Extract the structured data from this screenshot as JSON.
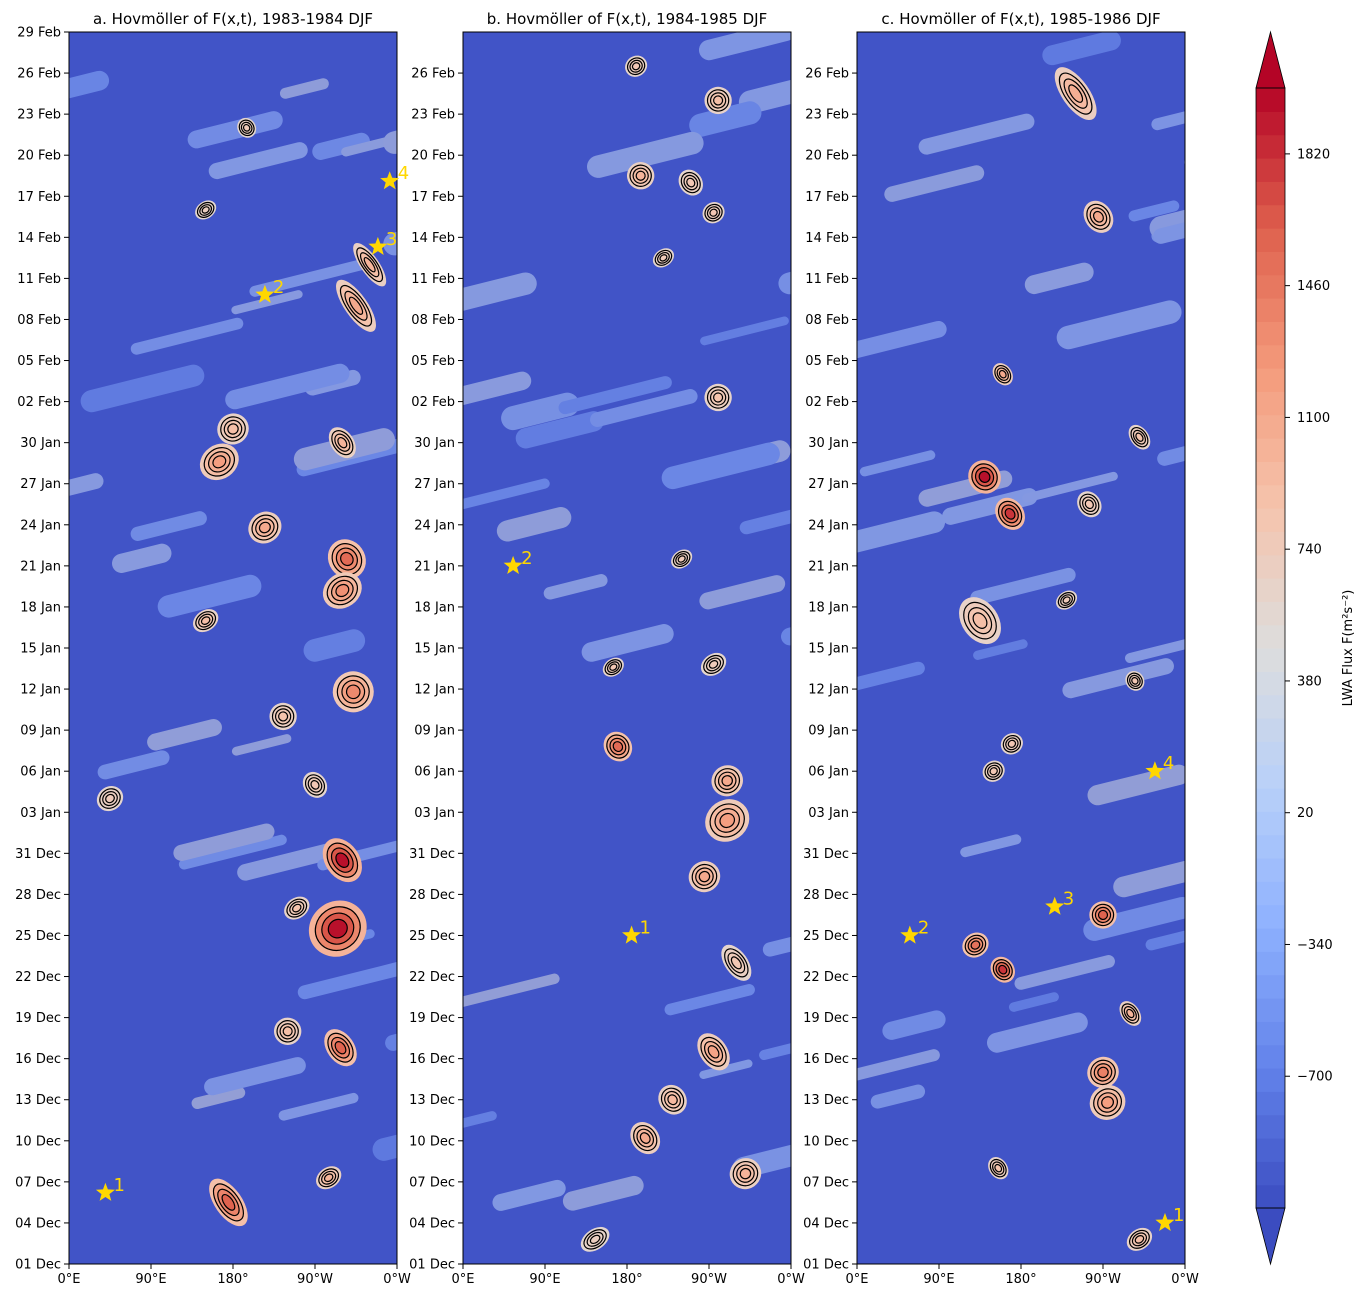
{
  "chart_data": [
    {
      "type": "heatmap",
      "title": "a. Hovmöller of F(x,t), 1983-1984 DJF",
      "xlabel": "",
      "ylabel": "",
      "x_ticks": [
        "0°E",
        "90°E",
        "180°",
        "90°W",
        "0°W"
      ],
      "y_ticks": [
        "01 Dec",
        "04 Dec",
        "07 Dec",
        "10 Dec",
        "13 Dec",
        "16 Dec",
        "19 Dec",
        "22 Dec",
        "25 Dec",
        "28 Dec",
        "31 Dec",
        "03 Jan",
        "06 Jan",
        "09 Jan",
        "12 Jan",
        "15 Jan",
        "18 Jan",
        "21 Jan",
        "24 Jan",
        "27 Jan",
        "30 Jan",
        "02 Feb",
        "05 Feb",
        "08 Feb",
        "11 Feb",
        "14 Feb",
        "17 Feb",
        "20 Feb",
        "23 Feb",
        "26 Feb",
        "29 Feb"
      ],
      "y_range_days": [
        0,
        90
      ],
      "x_range_lon": [
        0,
        360
      ],
      "markers": [
        {
          "label": "1",
          "lon": 40,
          "day": 5.2
        },
        {
          "label": "2",
          "lon": 215,
          "day": 70.8
        },
        {
          "label": "3",
          "lon": 339,
          "day": 74.3
        },
        {
          "label": "4",
          "lon": 352,
          "day": 79.1
        }
      ],
      "blobs": [
        {
          "lon": 295,
          "day": 24.5,
          "amp": 1950,
          "w": 26,
          "h": 1.6
        },
        {
          "lon": 300,
          "day": 29.5,
          "amp": 1950,
          "w": 15,
          "h": 1.4
        },
        {
          "lon": 298,
          "day": 15.8,
          "amp": 1600,
          "w": 12,
          "h": 1.2
        },
        {
          "lon": 175,
          "day": 4.5,
          "amp": 1600,
          "w": 12,
          "h": 1.6
        },
        {
          "lon": 305,
          "day": 51.5,
          "amp": 1550,
          "w": 16,
          "h": 1.2
        },
        {
          "lon": 300,
          "day": 49.2,
          "amp": 1300,
          "w": 18,
          "h": 1.0
        },
        {
          "lon": 312,
          "day": 41.8,
          "amp": 1350,
          "w": 18,
          "h": 1.2
        },
        {
          "lon": 165,
          "day": 58.6,
          "amp": 1200,
          "w": 18,
          "h": 1.0
        },
        {
          "lon": 215,
          "day": 53.8,
          "amp": 1100,
          "w": 15,
          "h": 0.9
        },
        {
          "lon": 315,
          "day": 70,
          "amp": 1100,
          "w": 10,
          "h": 1.8
        },
        {
          "lon": 330,
          "day": 73,
          "amp": 1000,
          "w": 8,
          "h": 1.5
        },
        {
          "lon": 300,
          "day": 60,
          "amp": 1000,
          "w": 10,
          "h": 1.0
        },
        {
          "lon": 285,
          "day": 6.3,
          "amp": 1000,
          "w": 12,
          "h": 0.6
        },
        {
          "lon": 150,
          "day": 47,
          "amp": 900,
          "w": 12,
          "h": 0.6
        },
        {
          "lon": 240,
          "day": 17,
          "amp": 900,
          "w": 12,
          "h": 0.8
        },
        {
          "lon": 235,
          "day": 40,
          "amp": 850,
          "w": 12,
          "h": 0.8
        },
        {
          "lon": 250,
          "day": 26,
          "amp": 850,
          "w": 12,
          "h": 0.6
        },
        {
          "lon": 180,
          "day": 61,
          "amp": 900,
          "w": 14,
          "h": 0.9
        },
        {
          "lon": 270,
          "day": 35,
          "amp": 800,
          "w": 10,
          "h": 0.8
        },
        {
          "lon": 195,
          "day": 83,
          "amp": 750,
          "w": 8,
          "h": 0.6
        },
        {
          "lon": 150,
          "day": 77,
          "amp": 700,
          "w": 10,
          "h": 0.5
        },
        {
          "lon": 45,
          "day": 34,
          "amp": 750,
          "w": 12,
          "h": 0.7
        }
      ]
    },
    {
      "type": "heatmap",
      "title": "b. Hovmöller of F(x,t), 1984-1985 DJF",
      "xlabel": "",
      "ylabel": "",
      "x_ticks": [
        "0°E",
        "90°E",
        "180°",
        "90°W",
        "0°W"
      ],
      "y_ticks": [
        "01 Dec",
        "04 Dec",
        "07 Dec",
        "10 Dec",
        "13 Dec",
        "16 Dec",
        "19 Dec",
        "22 Dec",
        "25 Dec",
        "28 Dec",
        "31 Dec",
        "03 Jan",
        "06 Jan",
        "09 Jan",
        "12 Jan",
        "15 Jan",
        "18 Jan",
        "21 Jan",
        "24 Jan",
        "27 Jan",
        "30 Jan",
        "02 Feb",
        "05 Feb",
        "08 Feb",
        "11 Feb",
        "14 Feb",
        "17 Feb",
        "20 Feb",
        "23 Feb",
        "26 Feb"
      ],
      "y_range_days": [
        0,
        90
      ],
      "x_range_lon": [
        0,
        360
      ],
      "markers": [
        {
          "label": "1",
          "lon": 185,
          "day": 24.0
        },
        {
          "label": "2",
          "lon": 55,
          "day": 51.0
        }
      ],
      "blobs": [
        {
          "lon": 170,
          "day": 37.8,
          "amp": 1550,
          "w": 12,
          "h": 0.9
        },
        {
          "lon": 290,
          "day": 32.4,
          "amp": 1200,
          "w": 20,
          "h": 1.2
        },
        {
          "lon": 290,
          "day": 35.3,
          "amp": 1100,
          "w": 14,
          "h": 0.9
        },
        {
          "lon": 265,
          "day": 28.3,
          "amp": 1100,
          "w": 14,
          "h": 0.9
        },
        {
          "lon": 275,
          "day": 15.5,
          "amp": 1150,
          "w": 12,
          "h": 1.2
        },
        {
          "lon": 200,
          "day": 9.2,
          "amp": 1100,
          "w": 12,
          "h": 1.0
        },
        {
          "lon": 310,
          "day": 6.6,
          "amp": 1000,
          "w": 14,
          "h": 0.9
        },
        {
          "lon": 230,
          "day": 12.0,
          "amp": 950,
          "w": 12,
          "h": 0.9
        },
        {
          "lon": 195,
          "day": 79.5,
          "amp": 1000,
          "w": 12,
          "h": 0.8
        },
        {
          "lon": 280,
          "day": 63.3,
          "amp": 850,
          "w": 12,
          "h": 0.8
        },
        {
          "lon": 250,
          "day": 79,
          "amp": 800,
          "w": 10,
          "h": 0.8
        },
        {
          "lon": 280,
          "day": 85,
          "amp": 900,
          "w": 12,
          "h": 0.8
        },
        {
          "lon": 190,
          "day": 87.5,
          "amp": 800,
          "w": 10,
          "h": 0.6
        },
        {
          "lon": 275,
          "day": 76.8,
          "amp": 800,
          "w": 10,
          "h": 0.6
        },
        {
          "lon": 220,
          "day": 73.5,
          "amp": 750,
          "w": 10,
          "h": 0.5
        },
        {
          "lon": 165,
          "day": 43.6,
          "amp": 800,
          "w": 10,
          "h": 0.5
        },
        {
          "lon": 275,
          "day": 43.8,
          "amp": 750,
          "w": 12,
          "h": 0.6
        },
        {
          "lon": 300,
          "day": 22.0,
          "amp": 800,
          "w": 10,
          "h": 1.2
        },
        {
          "lon": 145,
          "day": 1.8,
          "amp": 700,
          "w": 14,
          "h": 0.6
        },
        {
          "lon": 240,
          "day": 51.5,
          "amp": 750,
          "w": 10,
          "h": 0.5
        }
      ]
    },
    {
      "type": "heatmap",
      "title": "c. Hovmöller of F(x,t), 1985-1986 DJF",
      "xlabel": "",
      "ylabel": "",
      "x_ticks": [
        "0°E",
        "90°E",
        "180°",
        "90°W",
        "0°W"
      ],
      "y_ticks": [
        "01 Dec",
        "04 Dec",
        "07 Dec",
        "10 Dec",
        "13 Dec",
        "16 Dec",
        "19 Dec",
        "22 Dec",
        "25 Dec",
        "28 Dec",
        "31 Dec",
        "03 Jan",
        "06 Jan",
        "09 Jan",
        "12 Jan",
        "15 Jan",
        "18 Jan",
        "21 Jan",
        "24 Jan",
        "27 Jan",
        "30 Jan",
        "02 Feb",
        "05 Feb",
        "08 Feb",
        "11 Feb",
        "14 Feb",
        "17 Feb",
        "20 Feb",
        "23 Feb",
        "26 Feb"
      ],
      "y_range_days": [
        0,
        90
      ],
      "x_range_lon": [
        0,
        360
      ],
      "markers": [
        {
          "label": "1",
          "lon": 338,
          "day": 3.0
        },
        {
          "label": "2",
          "lon": 58,
          "day": 24.0
        },
        {
          "label": "3",
          "lon": 217,
          "day": 26.1
        },
        {
          "label": "4",
          "lon": 327,
          "day": 36.0
        }
      ],
      "blobs": [
        {
          "lon": 140,
          "day": 57.5,
          "amp": 1950,
          "w": 14,
          "h": 1.0
        },
        {
          "lon": 168,
          "day": 54.8,
          "amp": 1800,
          "w": 12,
          "h": 1.0
        },
        {
          "lon": 160,
          "day": 21.5,
          "amp": 1800,
          "w": 10,
          "h": 0.8
        },
        {
          "lon": 130,
          "day": 23.3,
          "amp": 1500,
          "w": 12,
          "h": 0.7
        },
        {
          "lon": 270,
          "day": 25.5,
          "amp": 1600,
          "w": 12,
          "h": 0.8
        },
        {
          "lon": 270,
          "day": 14.0,
          "amp": 1400,
          "w": 14,
          "h": 0.9
        },
        {
          "lon": 275,
          "day": 11.8,
          "amp": 1200,
          "w": 16,
          "h": 1.0
        },
        {
          "lon": 240,
          "day": 85.5,
          "amp": 1050,
          "w": 12,
          "h": 1.8
        },
        {
          "lon": 265,
          "day": 76.5,
          "amp": 1100,
          "w": 12,
          "h": 1.0
        },
        {
          "lon": 160,
          "day": 65.0,
          "amp": 1100,
          "w": 8,
          "h": 0.7
        },
        {
          "lon": 135,
          "day": 47,
          "amp": 900,
          "w": 16,
          "h": 1.5
        },
        {
          "lon": 300,
          "day": 18.3,
          "amp": 1000,
          "w": 8,
          "h": 0.8
        },
        {
          "lon": 150,
          "day": 36.0,
          "amp": 800,
          "w": 10,
          "h": 0.6
        },
        {
          "lon": 155,
          "day": 7.0,
          "amp": 850,
          "w": 8,
          "h": 0.7
        },
        {
          "lon": 310,
          "day": 1.8,
          "amp": 900,
          "w": 12,
          "h": 0.6
        },
        {
          "lon": 255,
          "day": 55.5,
          "amp": 800,
          "w": 10,
          "h": 0.8
        },
        {
          "lon": 310,
          "day": 60.4,
          "amp": 850,
          "w": 8,
          "h": 0.8
        },
        {
          "lon": 305,
          "day": 42.6,
          "amp": 800,
          "w": 8,
          "h": 0.6
        },
        {
          "lon": 230,
          "day": 48.5,
          "amp": 750,
          "w": 10,
          "h": 0.5
        },
        {
          "lon": 170,
          "day": 38.0,
          "amp": 800,
          "w": 10,
          "h": 0.6
        }
      ]
    }
  ],
  "colorbar": {
    "label": "LWA Flux F(m²s⁻²)",
    "ticks": [
      -700,
      -340,
      20,
      380,
      740,
      1100,
      1460,
      1820
    ],
    "tick_labels": [
      "−700",
      "−340",
      "20",
      "380",
      "740",
      "1100",
      "1460",
      "1820"
    ],
    "range": [
      -1060,
      2000
    ],
    "extend": "both",
    "colormap": "coolwarm"
  },
  "colors": {
    "low": "#3b4cc0",
    "mid": "#dddddd",
    "high": "#b40426",
    "marker": "#ffd700",
    "contour": "#000000"
  }
}
